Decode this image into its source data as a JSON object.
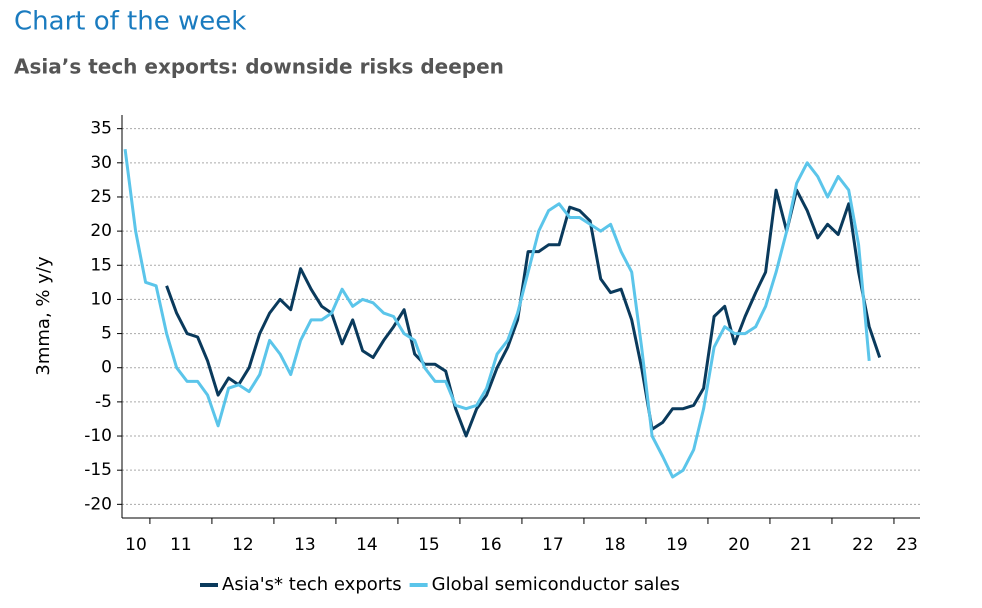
{
  "chart_data": {
    "type": "line",
    "title": "Chart of the week",
    "subtitle": "Asia’s tech exports: downside risks deepen",
    "ylabel": "3mma, % y/y",
    "x": [
      2010.6,
      2010.77,
      2010.93,
      2011.1,
      2011.27,
      2011.43,
      2011.6,
      2011.77,
      2011.93,
      2012.1,
      2012.27,
      2012.43,
      2012.6,
      2012.77,
      2012.93,
      2013.1,
      2013.27,
      2013.43,
      2013.6,
      2013.77,
      2013.93,
      2014.1,
      2014.27,
      2014.43,
      2014.6,
      2014.77,
      2014.93,
      2015.1,
      2015.27,
      2015.43,
      2015.6,
      2015.77,
      2015.93,
      2016.1,
      2016.27,
      2016.43,
      2016.6,
      2016.77,
      2016.93,
      2017.1,
      2017.27,
      2017.43,
      2017.6,
      2017.77,
      2017.93,
      2018.1,
      2018.27,
      2018.43,
      2018.6,
      2018.77,
      2018.93,
      2019.1,
      2019.27,
      2019.43,
      2019.6,
      2019.77,
      2019.93,
      2020.1,
      2020.27,
      2020.43,
      2020.6,
      2020.77,
      2020.93,
      2021.1,
      2021.27,
      2021.43,
      2021.6,
      2021.77,
      2021.93,
      2022.1,
      2022.27,
      2022.43,
      2022.6,
      2022.77
    ],
    "series": [
      {
        "name": "Asia's* tech exports",
        "color": "#0a3a5c",
        "values": [
          null,
          null,
          null,
          null,
          12,
          8,
          5,
          4.5,
          1,
          -4,
          -1.5,
          -2.5,
          0,
          5,
          8,
          10,
          8.5,
          14.5,
          11.5,
          9,
          8,
          3.5,
          7,
          2.5,
          1.5,
          4,
          6,
          8.5,
          2,
          0.5,
          0.5,
          -0.5,
          -6,
          -10,
          -6,
          -4,
          0,
          3,
          7,
          17,
          17,
          18,
          18,
          23.5,
          23,
          21.5,
          13,
          11,
          11.5,
          7,
          0,
          -9,
          -8,
          -6,
          -6,
          -5.5,
          -3,
          7.5,
          9,
          3.5,
          7.5,
          11,
          14,
          26,
          20,
          26,
          23,
          19,
          21,
          19.5,
          24,
          14,
          6,
          1.5
        ]
      },
      {
        "name": "Global semiconductor sales",
        "color": "#5bc5ea",
        "values": [
          32,
          20,
          12.5,
          12,
          5,
          0,
          -2,
          -2,
          -4,
          -8.5,
          -3,
          -2.5,
          -3.5,
          -1,
          4,
          2,
          -1,
          4,
          7,
          7,
          8,
          11.5,
          9,
          10,
          9.5,
          8,
          7.5,
          5,
          4,
          0,
          -2,
          -2,
          -5.5,
          -6,
          -5.5,
          -3,
          2,
          4,
          8,
          14,
          20,
          23,
          24,
          22,
          22,
          21,
          20,
          21,
          17,
          14,
          3,
          -10,
          -13,
          -16,
          -15,
          -12,
          -6,
          3,
          6,
          5,
          5,
          6,
          9,
          14,
          20,
          27,
          30,
          28,
          25,
          28,
          26,
          18,
          1,
          null
        ]
      }
    ],
    "xlim": [
      2010.55,
      2023.42
    ],
    "xticks": [
      {
        "value": 2010,
        "label": "10"
      },
      {
        "value": 2011,
        "label": "11"
      },
      {
        "value": 2012,
        "label": "12"
      },
      {
        "value": 2013,
        "label": "13"
      },
      {
        "value": 2014,
        "label": "14"
      },
      {
        "value": 2015,
        "label": "15"
      },
      {
        "value": 2016,
        "label": "16"
      },
      {
        "value": 2017,
        "label": "17"
      },
      {
        "value": 2018,
        "label": "18"
      },
      {
        "value": 2019,
        "label": "19"
      },
      {
        "value": 2020,
        "label": "20"
      },
      {
        "value": 2021,
        "label": "21"
      },
      {
        "value": 2022,
        "label": "22"
      },
      {
        "value": 2023,
        "label": "23"
      }
    ],
    "ylim": [
      -22,
      37
    ],
    "yticks": [
      -20,
      -15,
      -10,
      -5,
      0,
      5,
      10,
      15,
      20,
      25,
      30,
      35
    ],
    "grid": true,
    "legend": "bottom"
  }
}
